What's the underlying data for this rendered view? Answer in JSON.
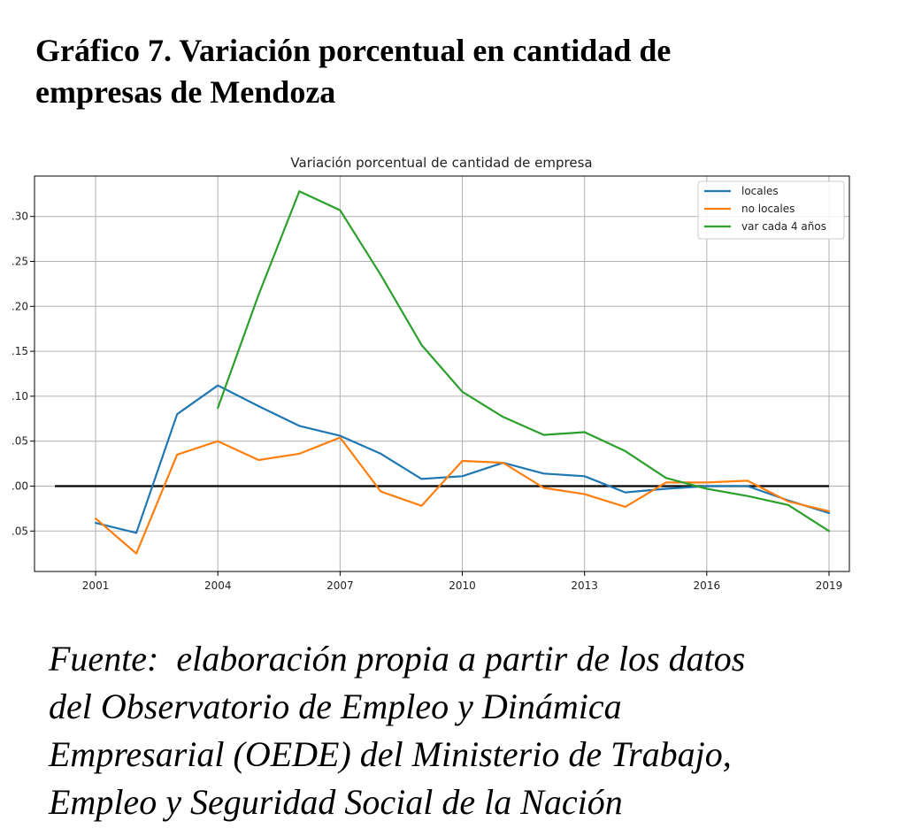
{
  "heading": {
    "line1": "Gráfico 7. Variación porcentual en cantidad de",
    "line2": "empresas de Mendoza"
  },
  "source": {
    "line1": "Fuente:  elaboración propia a partir de los datos",
    "line2": "del Observatorio de Empleo y Dinámica",
    "line3": "Empresarial (OEDE) del Ministerio de Trabajo,",
    "line4": "Empleo y Seguridad Social de la Nación"
  },
  "chart_data": {
    "type": "line",
    "title": "Variación porcentual de cantidad de empresa",
    "xlabel": "",
    "ylabel": "",
    "xlim": [
      1999.5,
      2019.5
    ],
    "ylim": [
      -0.095,
      0.345
    ],
    "xticks": [
      2001,
      2004,
      2007,
      2010,
      2013,
      2016,
      2019
    ],
    "xtick_labels": [
      "2001",
      "2004",
      "2007",
      "2010",
      "2013",
      "2016",
      "2019"
    ],
    "yticks": [
      -0.05,
      0.0,
      0.05,
      0.1,
      0.15,
      0.2,
      0.25,
      0.3
    ],
    "ytick_labels": [
      ".05",
      ".00",
      ".05",
      ".10",
      ".15",
      ".20",
      ".25",
      ".30"
    ],
    "grid": true,
    "legend_position": "top-right",
    "series": [
      {
        "name": "locales",
        "color": "#1f77b4",
        "x": [
          2001,
          2002,
          2003,
          2004,
          2005,
          2006,
          2007,
          2008,
          2009,
          2010,
          2011,
          2012,
          2013,
          2014,
          2015,
          2016,
          2017,
          2018,
          2019
        ],
        "values": [
          -0.041,
          -0.052,
          0.08,
          0.112,
          0.089,
          0.067,
          0.056,
          0.036,
          0.008,
          0.011,
          0.026,
          0.014,
          0.011,
          -0.007,
          -0.003,
          0.0,
          0.0,
          -0.016,
          -0.03
        ]
      },
      {
        "name": "no locales",
        "color": "#ff7f0e",
        "x": [
          2001,
          2002,
          2003,
          2004,
          2005,
          2006,
          2007,
          2008,
          2009,
          2010,
          2011,
          2012,
          2013,
          2014,
          2015,
          2016,
          2017,
          2018,
          2019
        ],
        "values": [
          -0.036,
          -0.075,
          0.035,
          0.05,
          0.029,
          0.036,
          0.054,
          -0.006,
          -0.022,
          0.028,
          0.026,
          -0.002,
          -0.009,
          -0.023,
          0.004,
          0.004,
          0.006,
          -0.017,
          -0.028
        ]
      },
      {
        "name": "var cada 4 años",
        "color": "#2ca02c",
        "x": [
          2004,
          2005,
          2006,
          2007,
          2008,
          2009,
          2010,
          2011,
          2012,
          2013,
          2014,
          2015,
          2016,
          2017,
          2018,
          2019
        ],
        "values": [
          0.087,
          0.213,
          0.328,
          0.307,
          0.235,
          0.157,
          0.105,
          0.077,
          0.057,
          0.06,
          0.039,
          0.009,
          -0.003,
          -0.011,
          -0.021,
          -0.05
        ]
      }
    ],
    "reference_line": {
      "color": "#000000",
      "x": [
        2000,
        2019
      ],
      "value": 0.0
    }
  }
}
